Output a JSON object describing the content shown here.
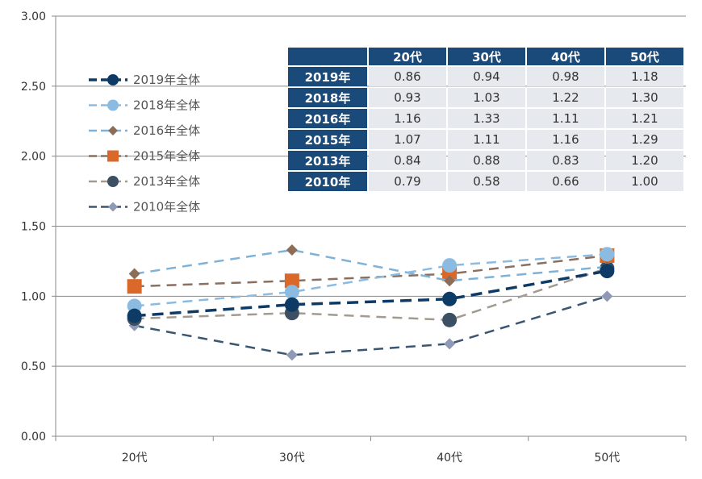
{
  "chart_data": {
    "type": "line",
    "categories": [
      "20代",
      "30代",
      "40代",
      "50代"
    ],
    "ylim": [
      0,
      3
    ],
    "yticks": [
      "0.00",
      "0.50",
      "1.00",
      "1.50",
      "2.00",
      "2.50",
      "3.00"
    ],
    "grid": true,
    "legend_position": "left",
    "series": [
      {
        "name": "2019年全体",
        "values": [
          0.86,
          0.94,
          0.98,
          1.18
        ],
        "color": "#0e3a66",
        "marker": "circle"
      },
      {
        "name": "2018年全体",
        "values": [
          0.93,
          1.03,
          1.22,
          1.3
        ],
        "color": "#8bbbe0",
        "marker": "circle"
      },
      {
        "name": "2016年全体",
        "values": [
          1.16,
          1.33,
          1.11,
          1.21
        ],
        "color": "#7fb2d8",
        "marker": "diamond",
        "marker_color": "#8c6e58"
      },
      {
        "name": "2015年全体",
        "values": [
          1.07,
          1.11,
          1.16,
          1.29
        ],
        "color": "#8a7060",
        "marker": "square",
        "marker_color": "#d9682a"
      },
      {
        "name": "2013年全体",
        "values": [
          0.84,
          0.88,
          0.83,
          1.2
        ],
        "color": "#a39a90",
        "marker": "circle",
        "marker_color": "#3d4f63"
      },
      {
        "name": "2010年全体",
        "values": [
          0.79,
          0.58,
          0.66,
          1.0
        ],
        "color": "#3a5672",
        "marker": "diamond",
        "marker_color": "#8e9ab5"
      }
    ]
  },
  "table": {
    "headers": [
      "",
      "20代",
      "30代",
      "40代",
      "50代"
    ],
    "rows": [
      {
        "label": "2019年",
        "values": [
          "0.86",
          "0.94",
          "0.98",
          "1.18"
        ]
      },
      {
        "label": "2018年",
        "values": [
          "0.93",
          "1.03",
          "1.22",
          "1.30"
        ]
      },
      {
        "label": "2016年",
        "values": [
          "1.16",
          "1.33",
          "1.11",
          "1.21"
        ]
      },
      {
        "label": "2015年",
        "values": [
          "1.07",
          "1.11",
          "1.16",
          "1.29"
        ]
      },
      {
        "label": "2013年",
        "values": [
          "0.84",
          "0.88",
          "0.83",
          "1.20"
        ]
      },
      {
        "label": "2010年",
        "values": [
          "0.79",
          "0.58",
          "0.66",
          "1.00"
        ]
      }
    ]
  }
}
